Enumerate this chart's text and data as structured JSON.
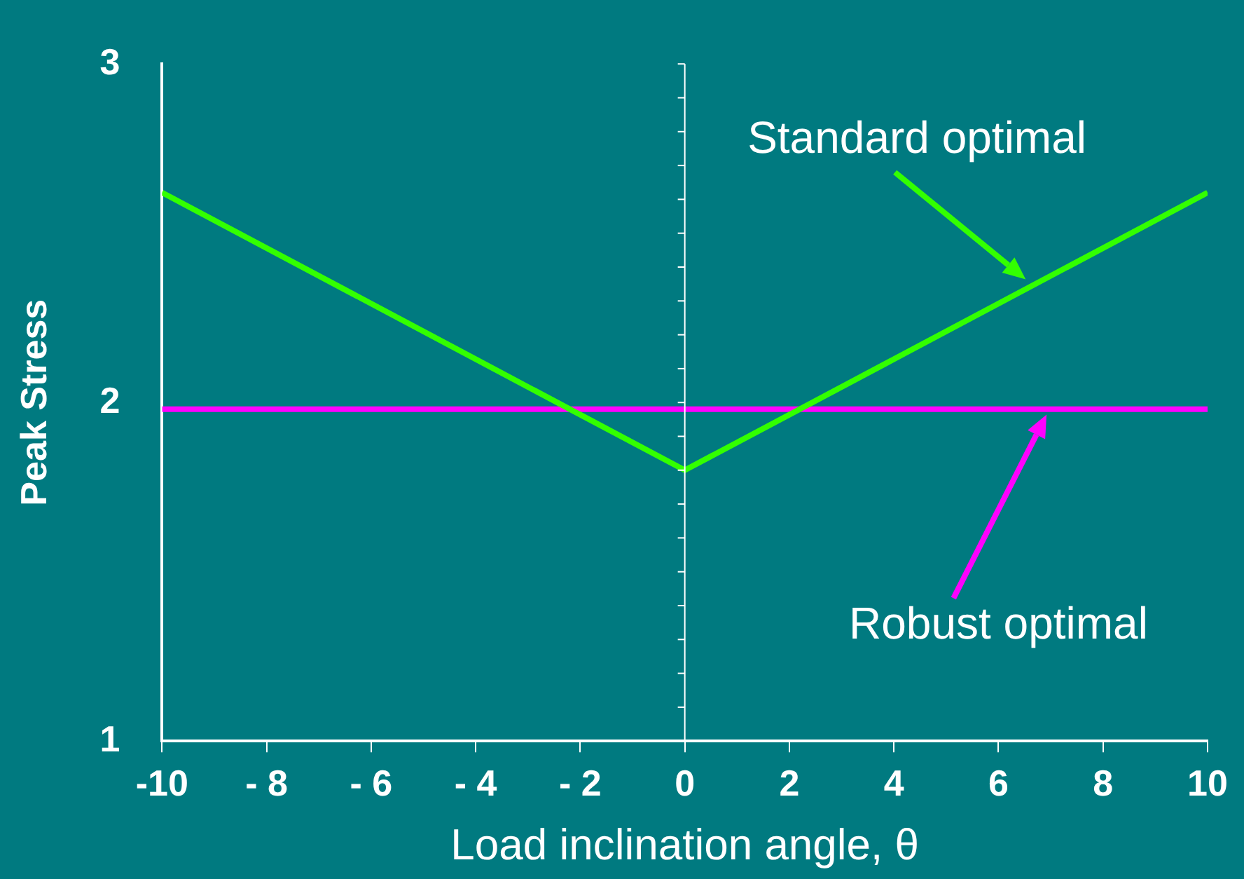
{
  "chart_data": {
    "type": "line",
    "xlabel": "Load inclination angle, θ",
    "ylabel": "Peak Stress",
    "series": [
      {
        "color": "#33ff00",
        "x": [
          -10,
          0,
          10
        ],
        "values": [
          2.62,
          1.8,
          2.62
        ]
      },
      {
        "color": "#ff00ff",
        "x": [
          -10,
          10
        ],
        "values": [
          1.98,
          1.98
        ]
      }
    ],
    "xlim": [
      -10,
      10
    ],
    "xticks": [
      -10,
      {
        "value": -8,
        "label": "- 8"
      },
      {
        "value": -6,
        "label": "- 6"
      },
      {
        "value": -4,
        "label": "- 4"
      },
      {
        "value": -2,
        "label": "- 2"
      },
      0,
      2,
      4,
      6,
      8,
      10
    ],
    "ylim": [
      1,
      3
    ],
    "yticks": [
      1,
      {
        "value": 1.1,
        "label": null
      },
      {
        "value": 1.2,
        "label": null
      },
      {
        "value": 1.3,
        "label": null
      },
      {
        "value": 1.4,
        "label": null
      },
      {
        "value": 1.5,
        "label": null
      },
      {
        "value": 1.6,
        "label": null
      },
      {
        "value": 1.7,
        "label": null
      },
      {
        "value": 1.8,
        "label": null
      },
      {
        "value": 1.9,
        "label": null
      },
      2,
      {
        "value": 2.1,
        "label": null
      },
      {
        "value": 2.2,
        "label": null
      },
      {
        "value": 2.3,
        "label": null
      },
      {
        "value": 2.4,
        "label": null
      },
      {
        "value": 2.5,
        "label": null
      },
      {
        "value": 2.6,
        "label": null
      },
      {
        "value": 2.7,
        "label": null
      },
      {
        "value": 2.8,
        "label": null
      },
      {
        "value": 2.9,
        "label": null
      },
      3
    ],
    "ref_lines": [
      {
        "axis": "x",
        "value": 0,
        "color": "#ffffff"
      }
    ],
    "annotations": [
      "Standard optimal",
      "Robust optimal"
    ],
    "marker": "none",
    "line_style": "solid",
    "grid": false,
    "legend": false
  }
}
